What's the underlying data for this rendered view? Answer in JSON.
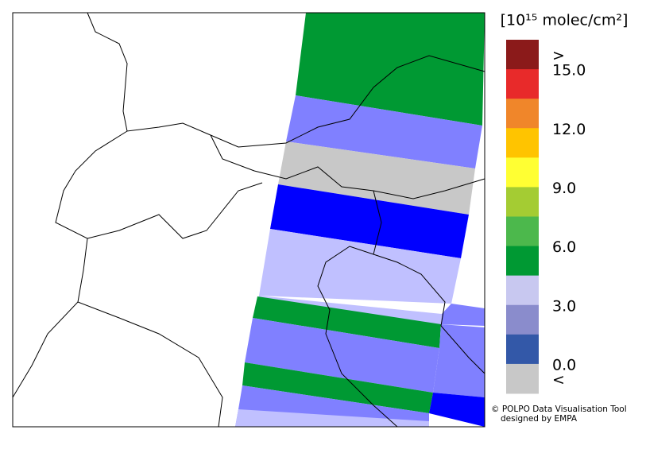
{
  "legend": {
    "title": "[10¹⁵ molec/cm²]",
    "labels": [
      ">",
      "15.0",
      "12.0",
      "9.0",
      "6.0",
      "3.0",
      "0.0",
      "<"
    ],
    "colors": [
      "#8b1a1a",
      "#e82a2a",
      "#f0862a",
      "#ffc400",
      "#ffff33",
      "#a4cc33",
      "#4cb84c",
      "#009933",
      "#c8c8f0",
      "#8a8ccc",
      "#3358a8",
      "#c8c8c8"
    ]
  },
  "credits": [
    "© POLPO Data Visualisation Tool",
    "designed by EMPA"
  ]
}
